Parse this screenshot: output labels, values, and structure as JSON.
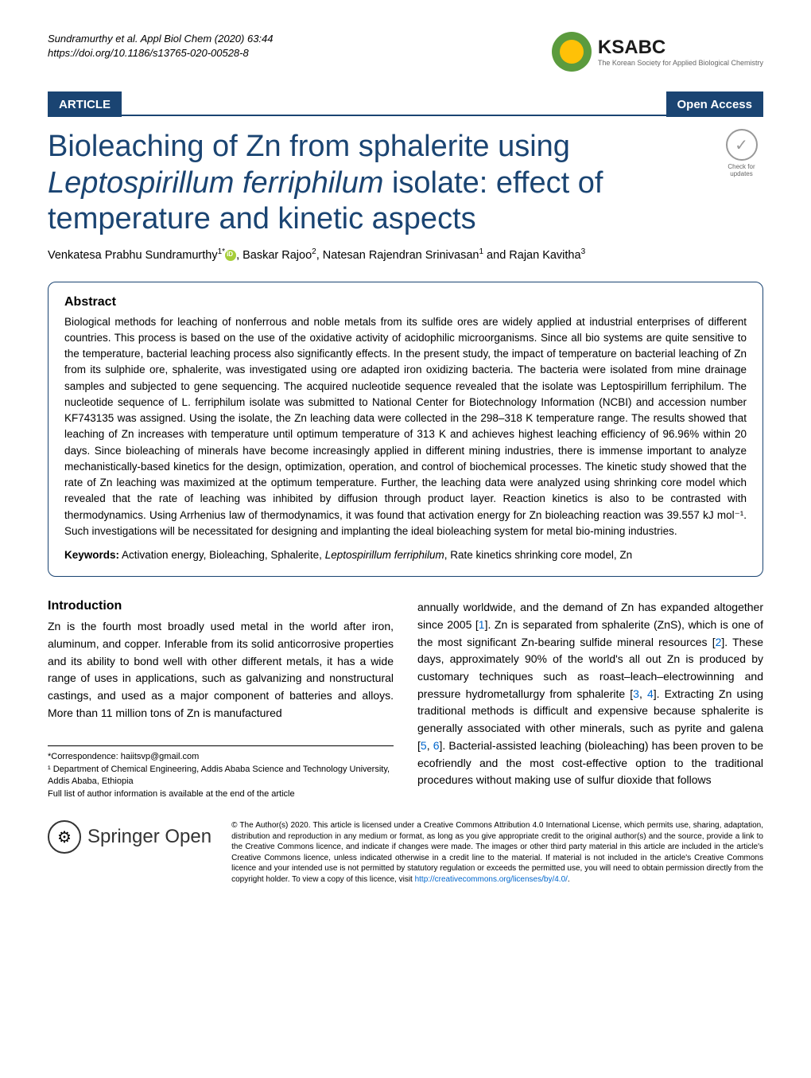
{
  "header": {
    "citation_line1": "Sundramurthy et al. Appl Biol Chem    (2020) 63:44",
    "citation_line2": "https://doi.org/10.1186/s13765-020-00528-8",
    "ksabc_title": "KSABC",
    "ksabc_subtitle": "The Korean Society for Applied Biological Chemistry"
  },
  "banner": {
    "article_label": "ARTICLE",
    "open_access": "Open Access"
  },
  "title": {
    "part1": "Bioleaching of Zn from sphalerite using ",
    "part2_italic": "Leptospirillum ferriphilum",
    "part3": " isolate: effect of temperature and kinetic aspects"
  },
  "crossmark": {
    "text": "Check for updates"
  },
  "authors": {
    "text": "Venkatesa Prabhu Sundramurthy",
    "sup1": "1*",
    "text2": ", Baskar Rajoo",
    "sup2": "2",
    "text3": ", Natesan Rajendran Srinivasan",
    "sup3": "1",
    "text4": " and Rajan Kavitha",
    "sup4": "3"
  },
  "abstract": {
    "heading": "Abstract",
    "text": "Biological methods for leaching of nonferrous and noble metals from its sulfide ores are widely applied at industrial enterprises of different countries. This process is based on the use of the oxidative activity of acidophilic microorganisms. Since all bio systems are quite sensitive to the temperature, bacterial leaching process also significantly effects. In the present study, the impact of temperature on bacterial leaching of Zn from its sulphide ore, sphalerite, was investigated using ore adapted iron oxidizing bacteria. The bacteria were isolated from mine drainage samples and subjected to gene sequencing. The acquired nucleotide sequence revealed that the isolate was Leptospirillum ferriphilum. The nucleotide sequence of L. ferriphilum isolate was submitted to National Center for Biotechnology Information (NCBI) and accession number KF743135 was assigned. Using the isolate, the Zn leaching data were collected in the 298–318 K temperature range. The results showed that leaching of Zn increases with temperature until optimum temperature of 313 K and achieves highest leaching efficiency of 96.96% within 20 days. Since bioleaching of minerals have become increasingly applied in different mining industries, there is immense important to analyze mechanistically-based kinetics for the design, optimization, operation, and control of biochemical processes. The kinetic study showed that the rate of Zn leaching was maximized at the optimum temperature. Further, the leaching data were analyzed using shrinking core model which revealed that the rate of leaching was inhibited by diffusion through product layer. Reaction kinetics is also to be contrasted with thermodynamics. Using Arrhenius law of thermodynamics, it was found that activation energy for Zn bioleaching reaction was 39.557 kJ mol⁻¹. Such investigations will be necessitated for designing and implanting the ideal bioleaching system for metal bio-mining industries.",
    "keywords_label": "Keywords:",
    "keywords_text": " Activation energy, Bioleaching, Sphalerite, ",
    "keywords_italic": "Leptospirillum ferriphilum",
    "keywords_text2": ", Rate kinetics shrinking core model, Zn"
  },
  "introduction": {
    "heading": "Introduction",
    "col1_text": "Zn is the fourth most broadly used metal in the world after iron, aluminum, and copper. Inferable from its solid anticorrosive properties and its ability to bond well with other different metals, it has a wide range of uses in applications, such as galvanizing and nonstructural castings, and used as a major component of batteries and alloys. More than 11 million tons of Zn is manufactured",
    "col2_p1": "annually worldwide, and the demand of Zn has expanded altogether since 2005 [",
    "col2_ref1": "1",
    "col2_p2": "]. Zn is separated from sphalerite (ZnS), which is one of the most significant Zn-bearing sulfide mineral resources [",
    "col2_ref2": "2",
    "col2_p3": "]. These days, approximately 90% of the world's all out Zn is produced by customary techniques such as roast–leach–electrowinning and pressure hydrometallurgy from sphalerite [",
    "col2_ref3": "3",
    "col2_p4": ", ",
    "col2_ref4": "4",
    "col2_p5": "]. Extracting Zn using traditional methods is difficult and expensive because sphalerite is generally associated with other minerals, such as pyrite and galena [",
    "col2_ref5": "5",
    "col2_p6": ", ",
    "col2_ref6": "6",
    "col2_p7": "]. Bacterial-assisted leaching (bioleaching) has been proven to be ecofriendly and the most cost-effective option to the traditional procedures without making use of sulfur dioxide that follows"
  },
  "footnotes": {
    "correspondence": "*Correspondence: haiitsvp@gmail.com",
    "affiliation": "¹ Department of Chemical Engineering, Addis Ababa Science and Technology University, Addis Ababa, Ethiopia",
    "full_list": "Full list of author information is available at the end of the article"
  },
  "footer": {
    "springer": "Springer",
    "springer_open": "Open",
    "license": "© The Author(s) 2020. This article is licensed under a Creative Commons Attribution 4.0 International License, which permits use, sharing, adaptation, distribution and reproduction in any medium or format, as long as you give appropriate credit to the original author(s) and the source, provide a link to the Creative Commons licence, and indicate if changes were made. The images or other third party material in this article are included in the article's Creative Commons licence, unless indicated otherwise in a credit line to the material. If material is not included in the article's Creative Commons licence and your intended use is not permitted by statutory regulation or exceeds the permitted use, you will need to obtain permission directly from the copyright holder. To view a copy of this licence, visit ",
    "license_link": "http://creativecommons.org/licenses/by/4.0/",
    "license_end": "."
  }
}
